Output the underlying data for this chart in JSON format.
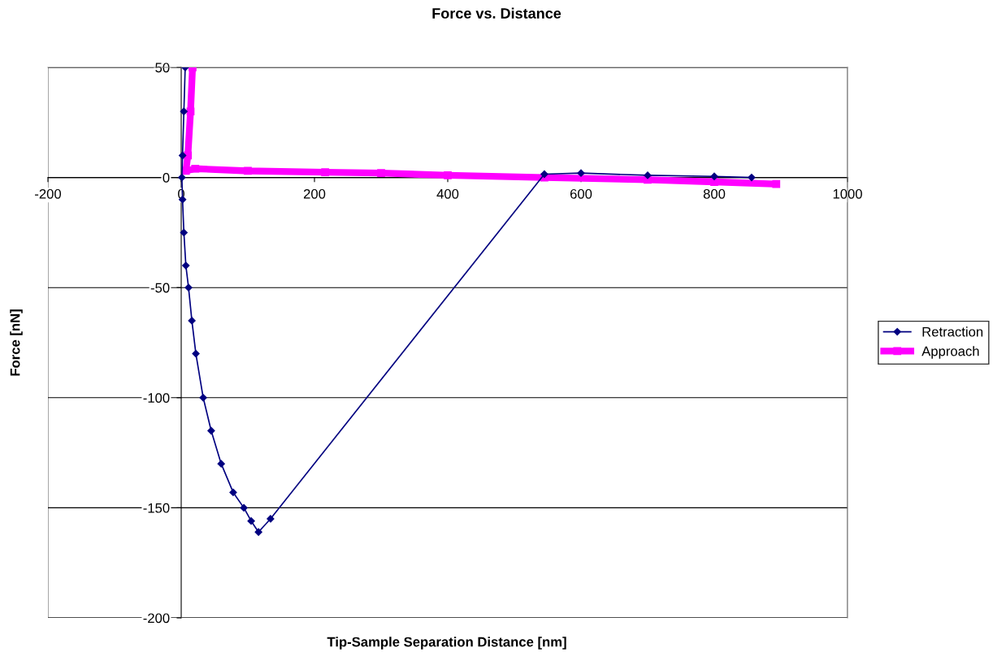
{
  "chart_data": {
    "type": "line",
    "title": "Force vs. Distance",
    "xlabel": "Tip-Sample Separation Distance [nm]",
    "ylabel": "Force [nN]",
    "xlim": [
      -200,
      1000
    ],
    "xticks": [
      -200,
      0,
      200,
      400,
      600,
      800,
      1000
    ],
    "ylim": [
      -200,
      50
    ],
    "yticks": [
      -200,
      -150,
      -100,
      -50,
      0,
      50
    ],
    "grid": "y",
    "legend": "right",
    "series": [
      {
        "name": "Retraction",
        "color": "#000080",
        "marker": "diamond",
        "x": [
          6,
          4,
          2,
          1,
          2,
          4,
          7,
          11,
          16,
          22,
          33,
          45,
          60,
          78,
          94,
          105,
          116,
          134,
          545,
          600,
          700,
          800,
          856
        ],
        "values": [
          50,
          30,
          10,
          0,
          -10,
          -25,
          -40,
          -50,
          -65,
          -80,
          -100,
          -115,
          -130,
          -143,
          -150,
          -156,
          -161,
          -155,
          1.5,
          2,
          1,
          0.5,
          0
        ]
      },
      {
        "name": "Approach",
        "color": "#ff00ff",
        "marker": "square",
        "x": [
          17,
          14,
          10,
          7,
          21,
          100,
          216,
          300,
          400,
          545,
          700,
          800,
          893
        ],
        "values": [
          50,
          30,
          10,
          3,
          4,
          3,
          2.4,
          2,
          1,
          0,
          -1,
          -2,
          -3
        ]
      }
    ]
  }
}
